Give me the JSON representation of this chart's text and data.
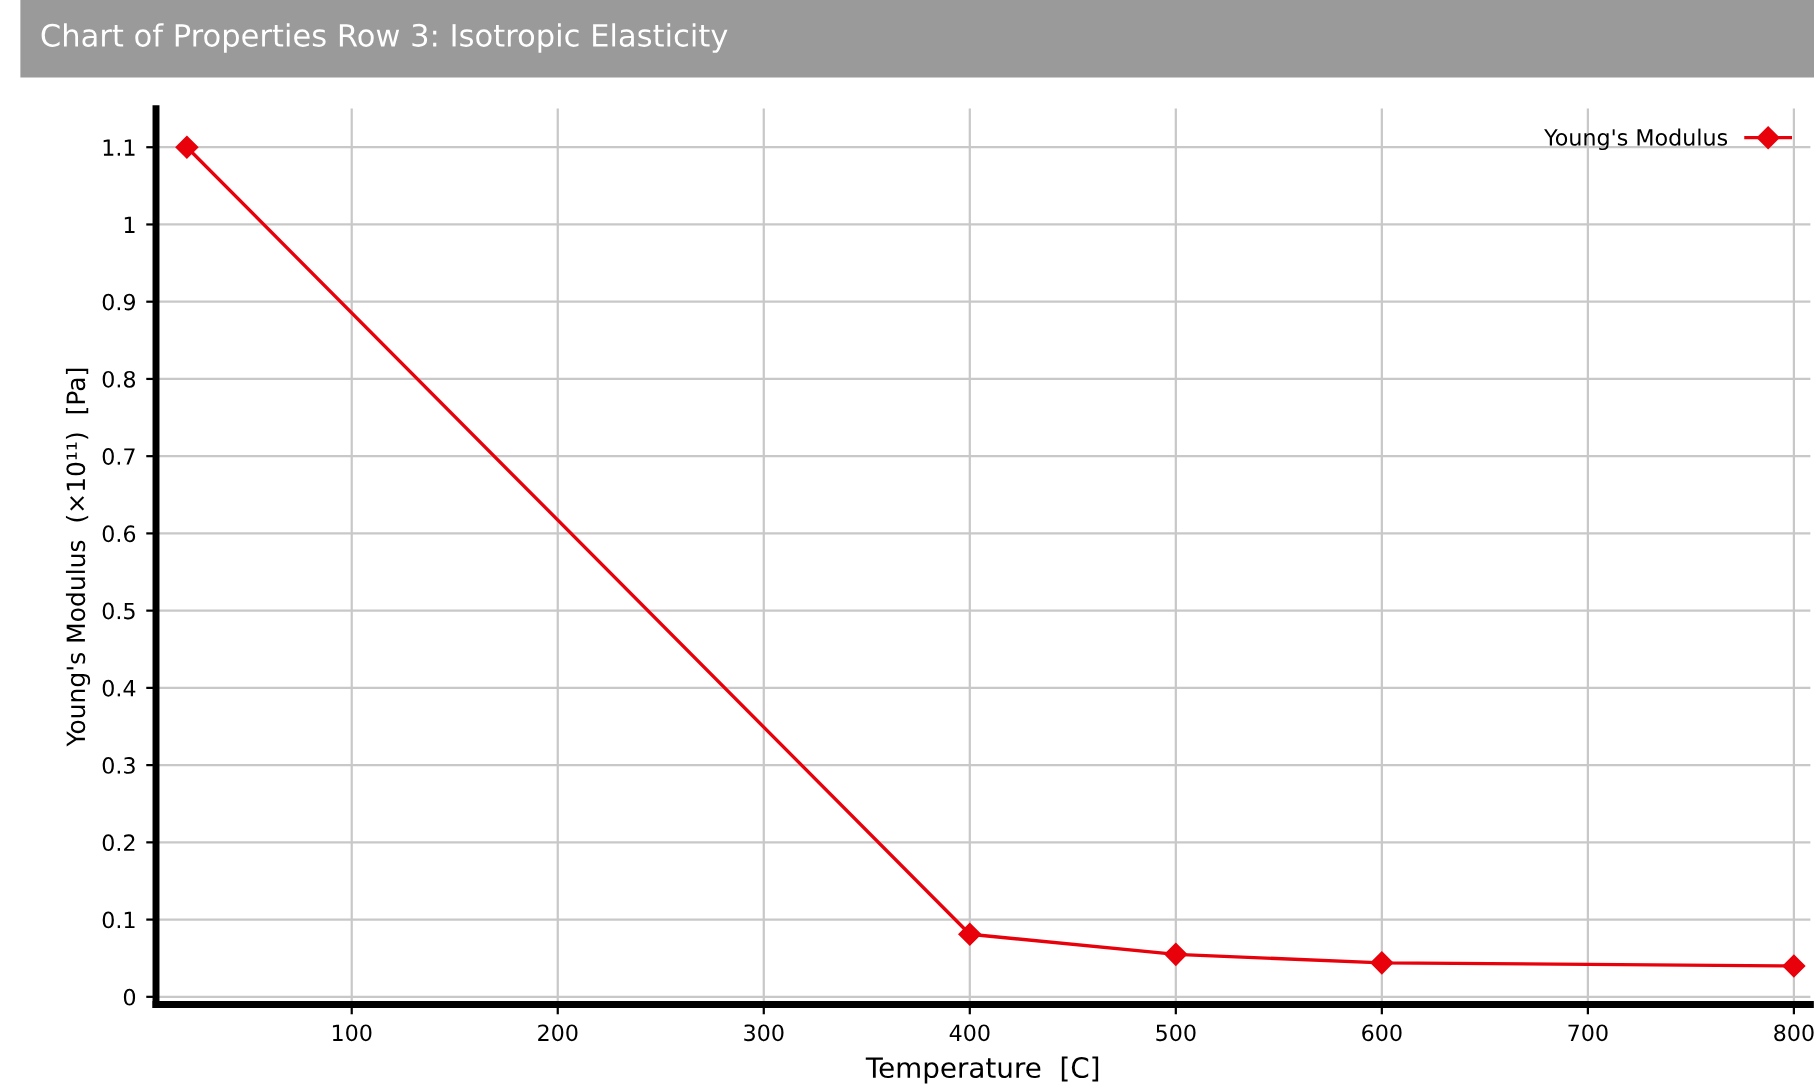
{
  "chart_data": {
    "type": "line",
    "title": "Chart of Properties Row 3: Isotropic Elasticity",
    "xlabel": "Temperature  [C]",
    "ylabel": "Young's Modulus  (×10¹¹)  [Pa]",
    "x": [
      20,
      400,
      500,
      600,
      800
    ],
    "series": [
      {
        "name": "Young's Modulus",
        "color": "#e8000b",
        "values": [
          1.1,
          0.081,
          0.055,
          0.044,
          0.04
        ]
      }
    ],
    "xlim": [
      5,
      808
    ],
    "ylim": [
      -0.01,
      1.15
    ],
    "xticks": [
      100,
      200,
      300,
      400,
      500,
      600,
      700,
      800
    ],
    "yticks": [
      0,
      0.1,
      0.2,
      0.3,
      0.4,
      0.5,
      0.6,
      0.7,
      0.8,
      0.9,
      1,
      1.1
    ],
    "grid": true,
    "legend": "top right",
    "marker": "diamond",
    "line_style": "solid"
  }
}
